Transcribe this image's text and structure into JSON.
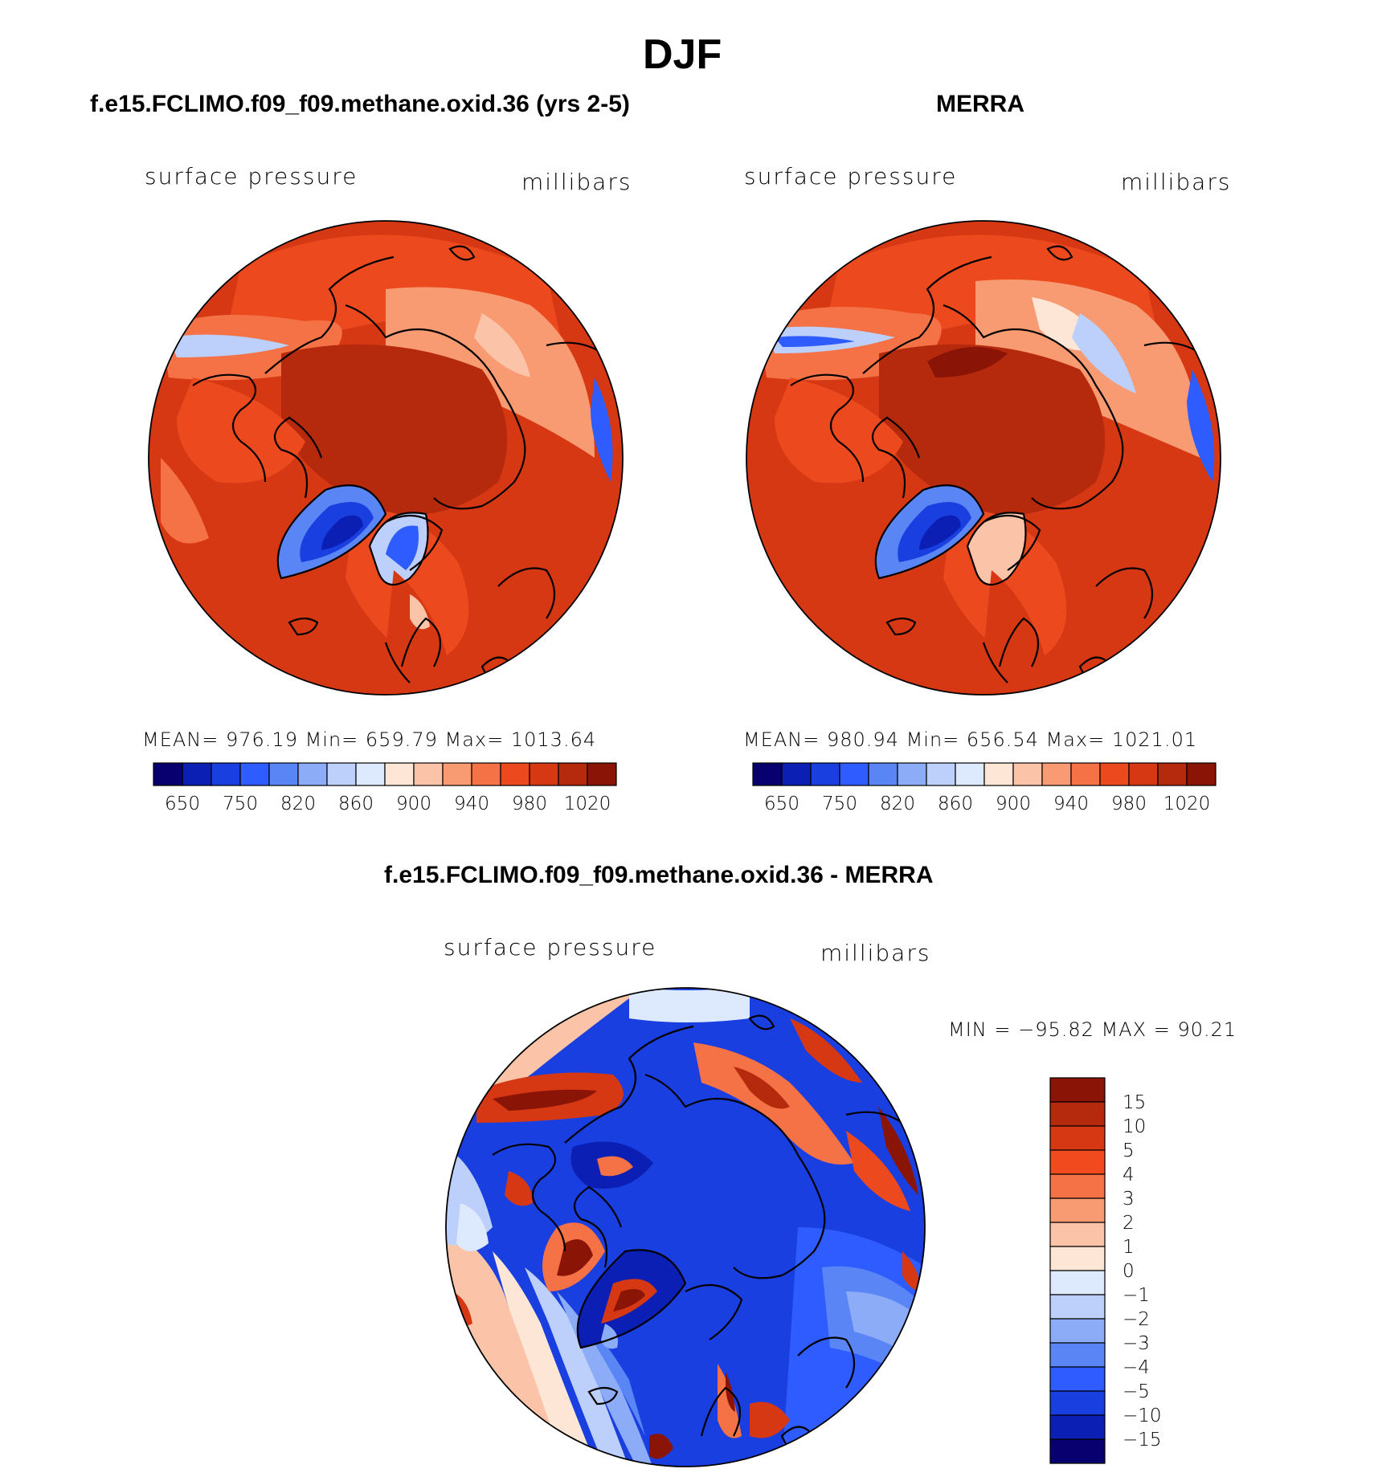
{
  "title": "DJF",
  "panels": [
    {
      "case_title": "f.e15.FCLIMO.f09_f09.methane.oxid.36 (yrs 2-5)",
      "variable": "surface pressure",
      "units": "millibars",
      "stats": "MEAN= 976.19   Min= 659.79   Max= 1013.64",
      "colorbar_labels": [
        "650",
        "750",
        "820",
        "860",
        "900",
        "940",
        "980",
        "1020"
      ]
    },
    {
      "case_title": "MERRA",
      "variable": "surface pressure",
      "units": "millibars",
      "stats": "MEAN= 980.94   Min= 656.54   Max= 1021.01",
      "colorbar_labels": [
        "650",
        "750",
        "820",
        "860",
        "900",
        "940",
        "980",
        "1020"
      ]
    }
  ],
  "diff": {
    "case_title": "f.e15.FCLIMO.f09_f09.methane.oxid.36 - MERRA",
    "variable": "surface pressure",
    "units": "millibars",
    "stats": "MIN = −95.82 MAX =   90.21",
    "colorbar_labels": [
      "15",
      "10",
      "5",
      "4",
      "3",
      "2",
      "1",
      "0",
      "−1",
      "−2",
      "−3",
      "−4",
      "−5",
      "−10",
      "−15"
    ]
  },
  "colors": {
    "abs_scale": [
      "#08006e",
      "#0b1fb4",
      "#1a3fe0",
      "#2e5cff",
      "#5a86f5",
      "#8cacf8",
      "#bcd0fb",
      "#dde9fd",
      "#fde6d6",
      "#fbc4a8",
      "#f89a72",
      "#f47246",
      "#ec4a1e",
      "#d73814",
      "#b52a0c",
      "#8a1405"
    ],
    "diff_scale": [
      "#8a1405",
      "#b52a0c",
      "#d73814",
      "#f04a1e",
      "#f47246",
      "#f89a72",
      "#fbc4a8",
      "#fde6d6",
      "#dde9fd",
      "#bcd0fb",
      "#8cacf8",
      "#5a86f5",
      "#2e5cff",
      "#1a3fe0",
      "#0b1fb4",
      "#08006e"
    ]
  }
}
